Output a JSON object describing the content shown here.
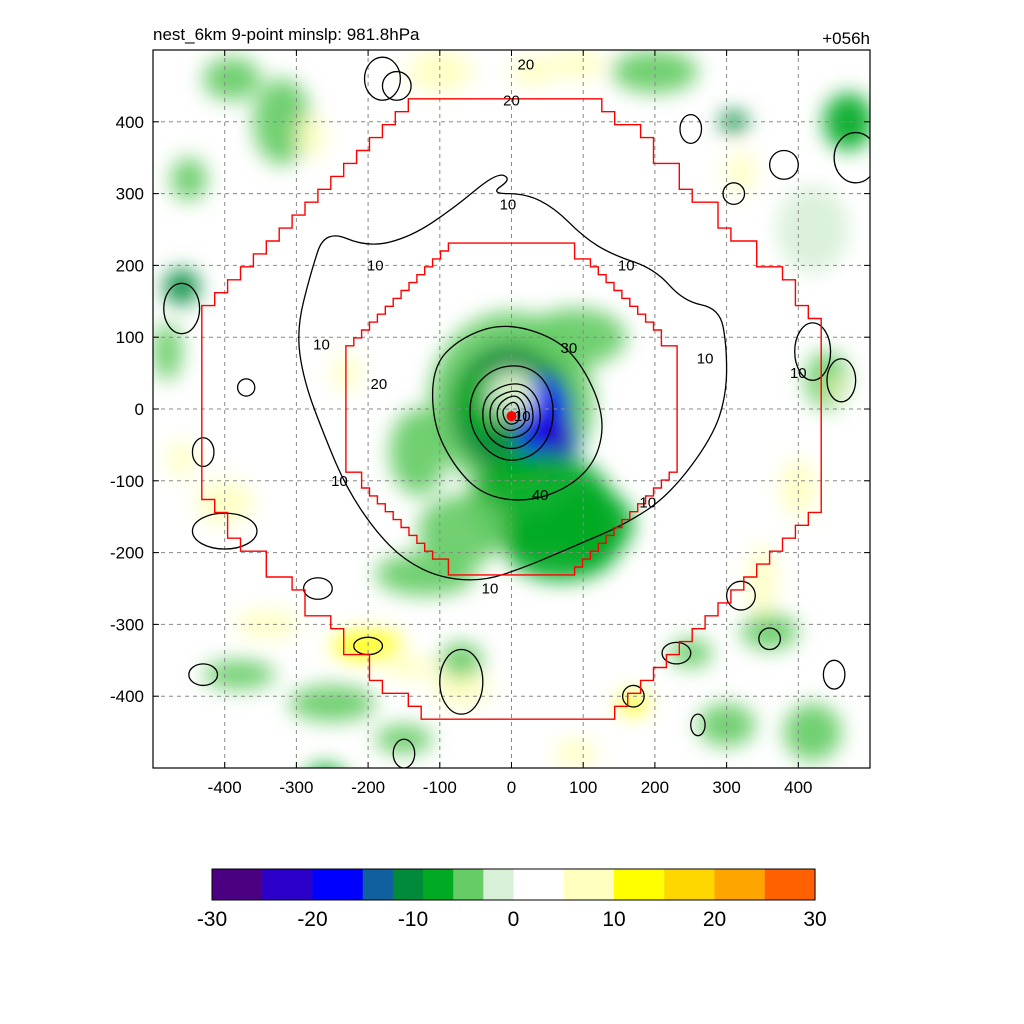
{
  "chart_data": {
    "type": "heatmap",
    "title_left": "nest_6km  9-point minslp: 981.8hPa",
    "title_right": "+056h",
    "xlim": [
      -500,
      500
    ],
    "ylim": [
      -500,
      500
    ],
    "x_ticks": [
      -400,
      -300,
      -200,
      -100,
      0,
      100,
      200,
      300,
      400
    ],
    "y_ticks": [
      400,
      300,
      200,
      100,
      0,
      -100,
      -200,
      -300,
      -400
    ],
    "grid": true,
    "colorbar": {
      "range": [
        -30,
        30
      ],
      "ticks": [
        -30,
        -20,
        -10,
        0,
        10,
        20,
        30
      ],
      "tick_labels": [
        "-30",
        "-20",
        "-10",
        "0",
        "10",
        "20",
        "30"
      ]
    },
    "contour_labels": [
      "10",
      "10",
      "10",
      "10",
      "10",
      "10",
      "10",
      "10",
      "10",
      "10",
      "20",
      "20",
      "20",
      "30",
      "40"
    ],
    "center": [
      0,
      -10
    ],
    "color_scale": {
      "stops": [
        [
          -30,
          "#4b0082"
        ],
        [
          -25,
          "#2a00c8"
        ],
        [
          -20,
          "#0000ff"
        ],
        [
          -15,
          "#1060a0"
        ],
        [
          -12,
          "#008a3a"
        ],
        [
          -9,
          "#00aa22"
        ],
        [
          -6,
          "#66cc66"
        ],
        [
          -3,
          "#d8f0d8"
        ],
        [
          0,
          "#ffffff"
        ],
        [
          3,
          "#ffffff"
        ],
        [
          5,
          "#ffffc0"
        ],
        [
          10,
          "#ffff00"
        ],
        [
          15,
          "#ffd700"
        ],
        [
          20,
          "#ffa500"
        ],
        [
          25,
          "#ff6000"
        ],
        [
          30,
          "#ff0000"
        ]
      ]
    },
    "blobs": [
      {
        "x": 0,
        "y": 10,
        "rx": 115,
        "ry": 125,
        "v": -5
      },
      {
        "x": 0,
        "y": 0,
        "rx": 85,
        "ry": 90,
        "v": -9
      },
      {
        "x": 45,
        "y": -20,
        "rx": 35,
        "ry": 65,
        "v": -18
      },
      {
        "x": 65,
        "y": -45,
        "rx": 25,
        "ry": 35,
        "v": -20
      },
      {
        "x": -40,
        "y": 10,
        "rx": 35,
        "ry": 45,
        "v": -8
      },
      {
        "x": 0,
        "y": 20,
        "rx": 35,
        "ry": 35,
        "v": 0
      },
      {
        "x": 5,
        "y": 25,
        "rx": 10,
        "ry": 15,
        "v": 10
      },
      {
        "x": 40,
        "y": -130,
        "rx": 100,
        "ry": 70,
        "v": -6
      },
      {
        "x": 70,
        "y": -190,
        "rx": 80,
        "ry": 50,
        "v": -6
      },
      {
        "x": -70,
        "y": -170,
        "rx": 60,
        "ry": 50,
        "v": -4
      },
      {
        "x": 110,
        "y": -160,
        "rx": 60,
        "ry": 50,
        "v": -7
      },
      {
        "x": -120,
        "y": -230,
        "rx": 70,
        "ry": 30,
        "v": -3
      },
      {
        "x": 90,
        "y": 100,
        "rx": 70,
        "ry": 40,
        "v": -3
      },
      {
        "x": -130,
        "y": -60,
        "rx": 40,
        "ry": 60,
        "v": -3
      },
      {
        "x": -460,
        "y": 170,
        "rx": 25,
        "ry": 25,
        "v": -9
      },
      {
        "x": -480,
        "y": 80,
        "rx": 20,
        "ry": 40,
        "v": -4
      },
      {
        "x": -320,
        "y": 400,
        "rx": 40,
        "ry": 60,
        "v": -3
      },
      {
        "x": -280,
        "y": 380,
        "rx": 20,
        "ry": 30,
        "v": 8
      },
      {
        "x": -340,
        "y": -300,
        "rx": 45,
        "ry": 20,
        "v": 10
      },
      {
        "x": -200,
        "y": -330,
        "rx": 50,
        "ry": 20,
        "v": 12
      },
      {
        "x": -140,
        "y": -360,
        "rx": 40,
        "ry": 15,
        "v": 10
      },
      {
        "x": -70,
        "y": -390,
        "rx": 40,
        "ry": 25,
        "v": 9
      },
      {
        "x": -70,
        "y": -350,
        "rx": 30,
        "ry": 25,
        "v": -5
      },
      {
        "x": -400,
        "y": -130,
        "rx": 40,
        "ry": 30,
        "v": 10
      },
      {
        "x": -460,
        "y": -70,
        "rx": 20,
        "ry": 25,
        "v": 9
      },
      {
        "x": -380,
        "y": -370,
        "rx": 50,
        "ry": 20,
        "v": -3
      },
      {
        "x": -250,
        "y": -410,
        "rx": 60,
        "ry": 25,
        "v": -3
      },
      {
        "x": -150,
        "y": -460,
        "rx": 40,
        "ry": 20,
        "v": -4
      },
      {
        "x": -260,
        "y": -520,
        "rx": 30,
        "ry": 25,
        "v": -6
      },
      {
        "x": -100,
        "y": 470,
        "rx": 45,
        "ry": 30,
        "v": 8
      },
      {
        "x": 30,
        "y": 470,
        "rx": 30,
        "ry": 20,
        "v": 6
      },
      {
        "x": 90,
        "y": 480,
        "rx": 40,
        "ry": 20,
        "v": 10
      },
      {
        "x": -390,
        "y": 460,
        "rx": 40,
        "ry": 30,
        "v": -3
      },
      {
        "x": 310,
        "y": 400,
        "rx": 20,
        "ry": 15,
        "v": -9
      },
      {
        "x": 320,
        "y": 330,
        "rx": 20,
        "ry": 30,
        "v": 9
      },
      {
        "x": 470,
        "y": 400,
        "rx": 35,
        "ry": 40,
        "v": -7
      },
      {
        "x": 440,
        "y": 40,
        "rx": 30,
        "ry": 40,
        "v": -5
      },
      {
        "x": 450,
        "y": 30,
        "rx": 12,
        "ry": 15,
        "v": 10
      },
      {
        "x": 400,
        "y": -110,
        "rx": 25,
        "ry": 40,
        "v": 10
      },
      {
        "x": 350,
        "y": -240,
        "rx": 20,
        "ry": 50,
        "v": 8
      },
      {
        "x": 360,
        "y": -310,
        "rx": 40,
        "ry": 25,
        "v": -4
      },
      {
        "x": 170,
        "y": -410,
        "rx": 20,
        "ry": 15,
        "v": 12
      },
      {
        "x": 250,
        "y": -340,
        "rx": 30,
        "ry": 20,
        "v": -3
      },
      {
        "x": 420,
        "y": -450,
        "rx": 40,
        "ry": 40,
        "v": -3
      },
      {
        "x": 300,
        "y": -440,
        "rx": 40,
        "ry": 30,
        "v": -3
      },
      {
        "x": 200,
        "y": 470,
        "rx": 60,
        "ry": 30,
        "v": -3
      },
      {
        "x": 420,
        "y": 250,
        "rx": 50,
        "ry": 60,
        "v": -2
      },
      {
        "x": 90,
        "y": -480,
        "rx": 30,
        "ry": 20,
        "v": 6
      },
      {
        "x": -230,
        "y": 50,
        "rx": 20,
        "ry": 25,
        "v": 6
      },
      {
        "x": -450,
        "y": 320,
        "rx": 25,
        "ry": 30,
        "v": -5
      }
    ],
    "contour_10_outer": [
      [
        -260,
        250
      ],
      [
        -200,
        225
      ],
      [
        -140,
        240
      ],
      [
        -80,
        280
      ],
      [
        -20,
        330
      ],
      [
        0,
        320
      ],
      [
        -30,
        300
      ],
      [
        20,
        300
      ],
      [
        60,
        280
      ],
      [
        100,
        240
      ],
      [
        140,
        215
      ],
      [
        200,
        195
      ],
      [
        240,
        150
      ],
      [
        290,
        140
      ],
      [
        300,
        90
      ],
      [
        300,
        20
      ],
      [
        280,
        -40
      ],
      [
        220,
        -120
      ],
      [
        160,
        -160
      ],
      [
        90,
        -190
      ],
      [
        20,
        -220
      ],
      [
        -40,
        -240
      ],
      [
        -100,
        -235
      ],
      [
        -150,
        -210
      ],
      [
        -190,
        -170
      ],
      [
        -230,
        -110
      ],
      [
        -260,
        -40
      ],
      [
        -290,
        40
      ],
      [
        -300,
        110
      ],
      [
        -280,
        190
      ]
    ],
    "contour_20": [
      [
        -110,
        60
      ],
      [
        -70,
        100
      ],
      [
        -10,
        120
      ],
      [
        60,
        100
      ],
      [
        100,
        60
      ],
      [
        130,
        -10
      ],
      [
        120,
        -70
      ],
      [
        80,
        -110
      ],
      [
        20,
        -130
      ],
      [
        -40,
        -120
      ],
      [
        -80,
        -80
      ],
      [
        -110,
        -20
      ]
    ],
    "contour_30": [
      [
        -55,
        30
      ],
      [
        -20,
        60
      ],
      [
        25,
        60
      ],
      [
        55,
        30
      ],
      [
        60,
        -20
      ],
      [
        40,
        -60
      ],
      [
        0,
        -75
      ],
      [
        -35,
        -60
      ],
      [
        -60,
        -20
      ]
    ],
    "contour_inner": [
      [
        [
          -40,
          15
        ],
        [
          -10,
          35
        ],
        [
          20,
          35
        ],
        [
          40,
          10
        ],
        [
          40,
          -30
        ],
        [
          15,
          -55
        ],
        [
          -15,
          -55
        ],
        [
          -40,
          -30
        ]
      ],
      [
        [
          -30,
          10
        ],
        [
          -5,
          25
        ],
        [
          15,
          25
        ],
        [
          30,
          5
        ],
        [
          30,
          -25
        ],
        [
          10,
          -40
        ],
        [
          -12,
          -40
        ],
        [
          -30,
          -25
        ]
      ],
      [
        [
          -20,
          5
        ],
        [
          -3,
          18
        ],
        [
          10,
          18
        ],
        [
          20,
          2
        ],
        [
          20,
          -20
        ],
        [
          5,
          -30
        ],
        [
          -8,
          -30
        ],
        [
          -20,
          -18
        ]
      ],
      [
        [
          -12,
          0
        ],
        [
          0,
          10
        ],
        [
          8,
          8
        ],
        [
          12,
          -5
        ],
        [
          10,
          -18
        ],
        [
          0,
          -22
        ],
        [
          -8,
          -18
        ],
        [
          -12,
          -8
        ]
      ]
    ],
    "small_contours": [
      {
        "x": -180,
        "y": 460,
        "rx": 25,
        "ry": 30
      },
      {
        "x": -460,
        "y": 140,
        "rx": 25,
        "ry": 35
      },
      {
        "x": -400,
        "y": -170,
        "rx": 45,
        "ry": 25
      },
      {
        "x": -430,
        "y": -370,
        "rx": 20,
        "ry": 15
      },
      {
        "x": -70,
        "y": -380,
        "rx": 30,
        "ry": 45
      },
      {
        "x": 420,
        "y": 80,
        "rx": 25,
        "ry": 40
      },
      {
        "x": 460,
        "y": 40,
        "rx": 20,
        "ry": 30
      },
      {
        "x": 480,
        "y": 350,
        "rx": 30,
        "ry": 35
      },
      {
        "x": 380,
        "y": 340,
        "rx": 20,
        "ry": 20
      },
      {
        "x": 360,
        "y": -320,
        "rx": 15,
        "ry": 15
      },
      {
        "x": 320,
        "y": -260,
        "rx": 20,
        "ry": 20
      },
      {
        "x": 450,
        "y": -370,
        "rx": 15,
        "ry": 20
      },
      {
        "x": -270,
        "y": -250,
        "rx": 20,
        "ry": 15
      },
      {
        "x": -200,
        "y": -330,
        "rx": 20,
        "ry": 12
      },
      {
        "x": 230,
        "y": -340,
        "rx": 20,
        "ry": 15
      },
      {
        "x": -160,
        "y": 450,
        "rx": 20,
        "ry": 20
      },
      {
        "x": 250,
        "y": 390,
        "rx": 15,
        "ry": 20
      },
      {
        "x": -430,
        "y": -60,
        "rx": 15,
        "ry": 20
      },
      {
        "x": 170,
        "y": -400,
        "rx": 15,
        "ry": 15
      },
      {
        "x": -150,
        "y": -480,
        "rx": 15,
        "ry": 20
      },
      {
        "x": 260,
        "y": -440,
        "rx": 10,
        "ry": 15
      },
      {
        "x": 310,
        "y": 300,
        "rx": 15,
        "ry": 15
      },
      {
        "x": -370,
        "y": 30,
        "rx": 12,
        "ry": 12
      }
    ],
    "contour_labels_pos": [
      [
        -5,
        285
      ],
      [
        -190,
        200
      ],
      [
        160,
        200
      ],
      [
        -265,
        90
      ],
      [
        270,
        70
      ],
      [
        400,
        50
      ],
      [
        -240,
        -100
      ],
      [
        190,
        -130
      ],
      [
        -30,
        -250
      ],
      [
        15,
        -10
      ],
      [
        0,
        430
      ],
      [
        20,
        480
      ],
      [
        -185,
        35
      ],
      [
        80,
        85
      ],
      [
        40,
        -120
      ]
    ]
  }
}
